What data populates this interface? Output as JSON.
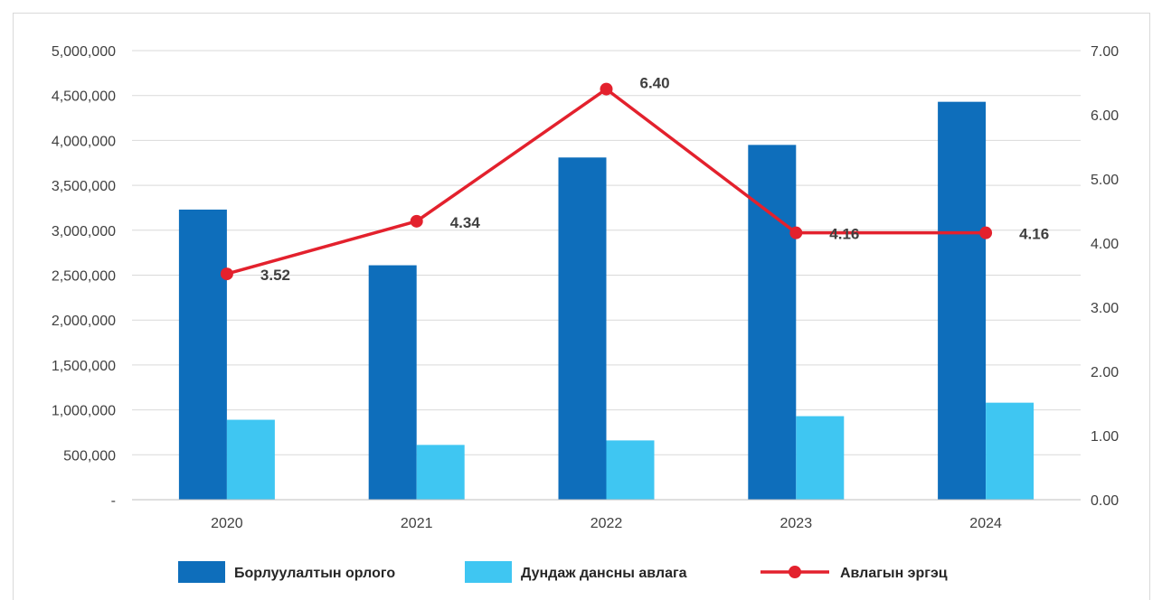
{
  "chart_data": {
    "type": "bar",
    "categories": [
      "2020",
      "2021",
      "2022",
      "2023",
      "2024"
    ],
    "series": [
      {
        "name": "Борлуулалтын орлого",
        "type": "bar",
        "axis": "left",
        "color": "#0e6ebb",
        "values": [
          3230000,
          2610000,
          3810000,
          3950000,
          4430000
        ]
      },
      {
        "name": "Дундаж дансны авлага",
        "type": "bar",
        "axis": "left",
        "color": "#3fc6f2",
        "values": [
          890000,
          610000,
          660000,
          930000,
          1080000
        ]
      },
      {
        "name": "Авлагын эргэц",
        "type": "line",
        "axis": "right",
        "color": "#e3212d",
        "values": [
          3.52,
          4.34,
          6.4,
          4.16,
          4.16
        ],
        "labels": [
          "3.52",
          "4.34",
          "6.40",
          "4.16",
          "4.16"
        ]
      }
    ],
    "left_axis": {
      "ylim": [
        0,
        5000000
      ],
      "ticks": [
        0,
        500000,
        1000000,
        1500000,
        2000000,
        2500000,
        3000000,
        3500000,
        4000000,
        4500000,
        5000000
      ],
      "tick_labels": [
        "-",
        "500,000",
        "1,000,000",
        "1,500,000",
        "2,000,000",
        "2,500,000",
        "3,000,000",
        "3,500,000",
        "4,000,000",
        "4,500,000",
        "5,000,000"
      ]
    },
    "right_axis": {
      "ylim": [
        0,
        7
      ],
      "ticks": [
        0,
        1,
        2,
        3,
        4,
        5,
        6,
        7
      ],
      "tick_labels": [
        "0.00",
        "1.00",
        "2.00",
        "3.00",
        "4.00",
        "5.00",
        "6.00",
        "7.00"
      ]
    },
    "grid": true,
    "legend_position": "bottom"
  }
}
